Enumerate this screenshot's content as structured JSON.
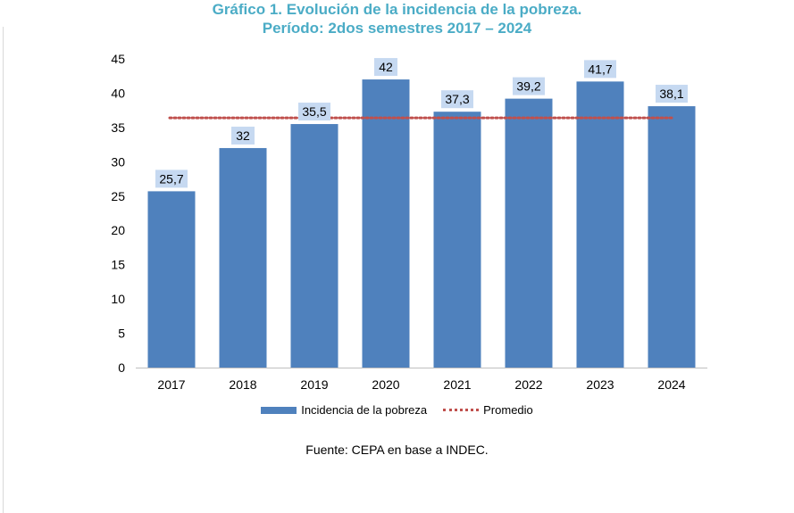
{
  "title": {
    "line1": "Gráfico 1. Evolución de la incidencia de la pobreza.",
    "line2": "Período: 2dos semestres 2017 – 2024"
  },
  "source": "Fuente: CEPA en base a INDEC.",
  "colors": {
    "title": "#4bacc6",
    "bar": "#4f81bd",
    "average_line": "#c0504d",
    "label_bg": "#c6d9f1"
  },
  "chart_data": {
    "type": "bar",
    "categories": [
      "2017",
      "2018",
      "2019",
      "2020",
      "2021",
      "2022",
      "2023",
      "2024"
    ],
    "series": [
      {
        "name": "Incidencia de la pobreza",
        "values": [
          25.7,
          32,
          35.5,
          42,
          37.3,
          39.2,
          41.7,
          38.1
        ],
        "labels": [
          "25,7",
          "32",
          "35,5",
          "42",
          "37,3",
          "39,2",
          "41,7",
          "38,1"
        ]
      }
    ],
    "average": {
      "name": "Promedio",
      "value": 36.4
    },
    "yticks": [
      "0",
      "5",
      "10",
      "15",
      "20",
      "25",
      "30",
      "35",
      "40",
      "45"
    ],
    "ylim": [
      0,
      45
    ],
    "grid": false,
    "legend_position": "bottom",
    "xlabel": "",
    "ylabel": ""
  }
}
